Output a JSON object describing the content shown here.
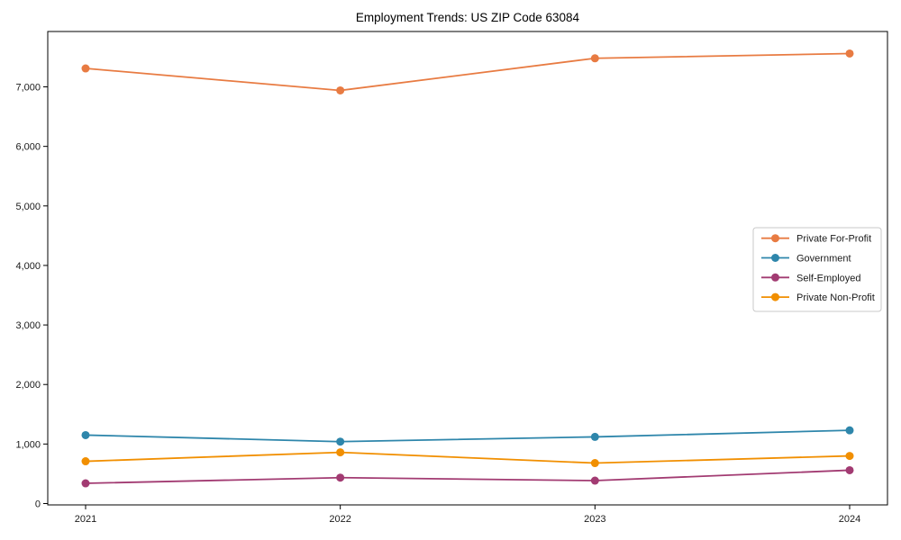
{
  "title": "Employment Trends: US ZIP Code 63084",
  "chart_data": {
    "type": "line",
    "title": "Employment Trends: US ZIP Code 63084",
    "xlabel": "",
    "ylabel": "",
    "grid": false,
    "legend_position": "middle-right",
    "x_tick_labels": [
      "2021",
      "2022",
      "2023",
      "2024"
    ],
    "x": [
      2021,
      2022,
      2023,
      2024
    ],
    "ylim": [
      0,
      7930
    ],
    "y_ticks": [
      0,
      1000,
      2000,
      3000,
      4000,
      5000,
      6000,
      7000
    ],
    "y_tick_labels": [
      "0",
      "1,000",
      "2,000",
      "3,000",
      "4,000",
      "5,000",
      "6,000",
      "7,000"
    ],
    "series": [
      {
        "name": "Private For-Profit",
        "color": "#E87B42",
        "values": [
          7310,
          6940,
          7480,
          7560
        ]
      },
      {
        "name": "Government",
        "color": "#2E86AB",
        "values": [
          1150,
          1040,
          1120,
          1230
        ]
      },
      {
        "name": "Self-Employed",
        "color": "#A23B72",
        "values": [
          340,
          435,
          385,
          560
        ]
      },
      {
        "name": "Private Non-Profit",
        "color": "#F18F01",
        "values": [
          710,
          860,
          680,
          800
        ]
      }
    ]
  }
}
